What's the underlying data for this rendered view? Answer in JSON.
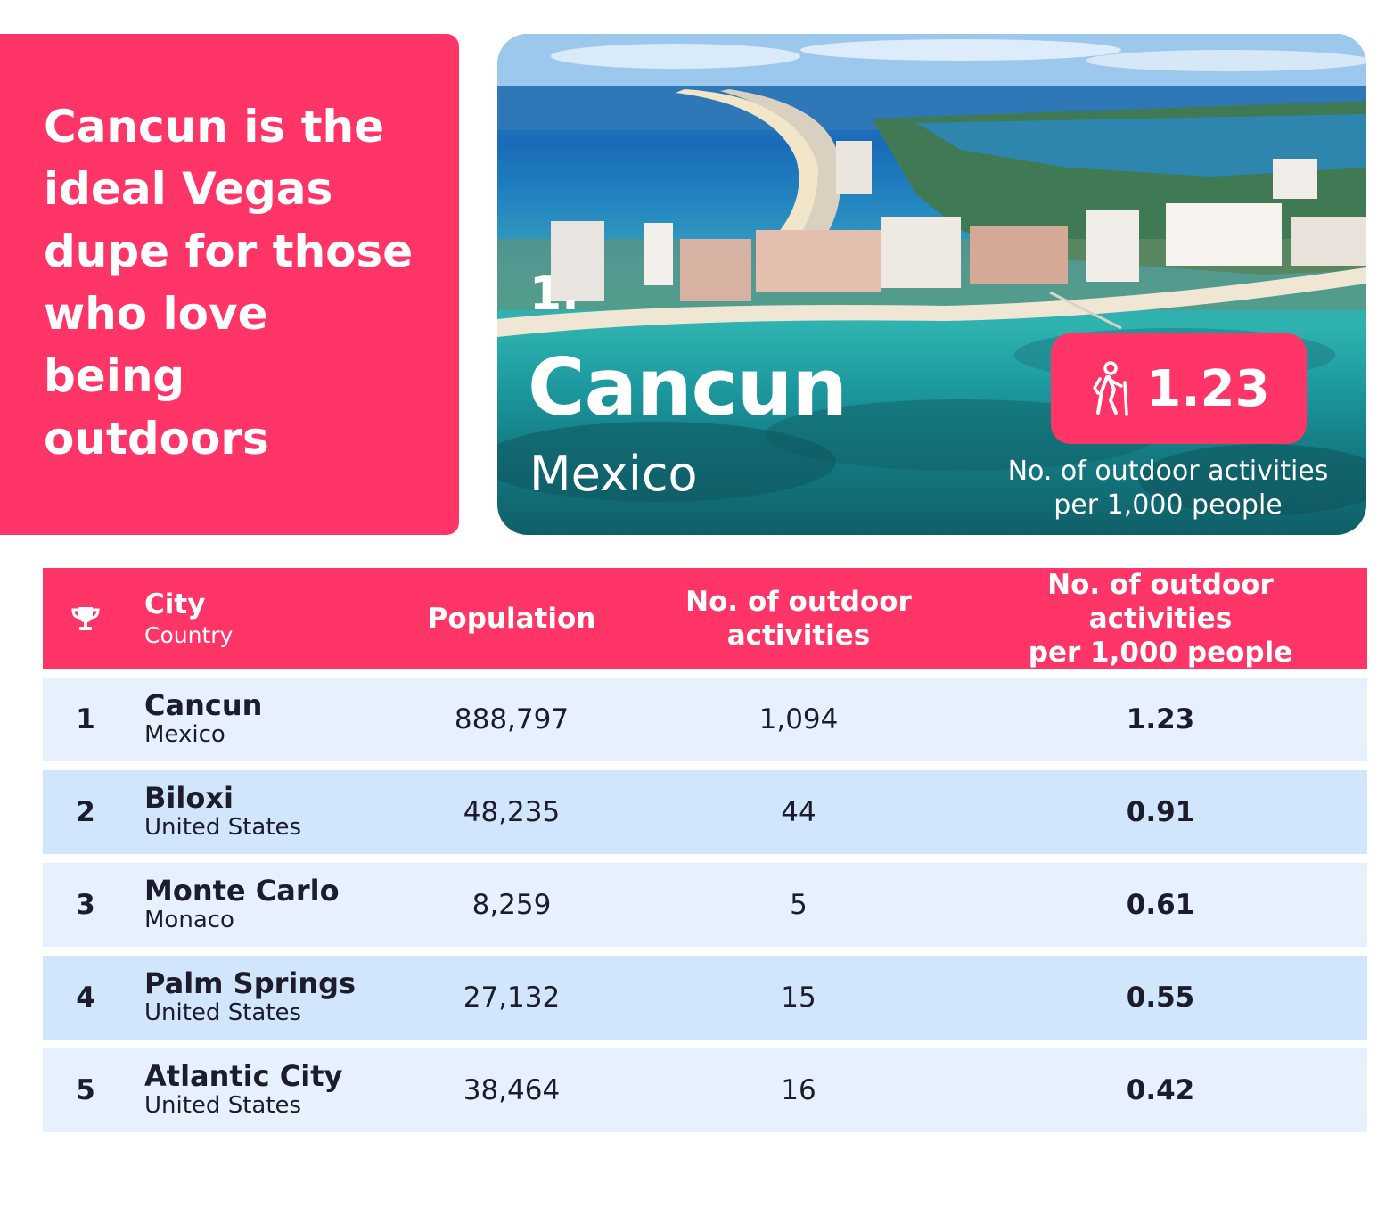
{
  "headline": "Cancun is the ideal Vegas dupe for those who love being outdoors",
  "feature": {
    "rank": "1.",
    "city": "Cancun",
    "country": "Mexico",
    "stat_icon": "hiker-icon",
    "stat_value": "1.23",
    "stat_caption_line1": "No. of outdoor activities",
    "stat_caption_line2": "per 1,000 people"
  },
  "table": {
    "header": {
      "rank_icon": "trophy-icon",
      "city": "City",
      "country": "Country",
      "population": "Population",
      "activities_line1": "No. of outdoor",
      "activities_line2": "activities",
      "per1000_line1": "No. of outdoor activities",
      "per1000_line2": "per 1,000 people"
    },
    "rows": [
      {
        "rank": "1",
        "city": "Cancun",
        "country": "Mexico",
        "population": "888,797",
        "activities": "1,094",
        "per_1000": "1.23"
      },
      {
        "rank": "2",
        "city": "Biloxi",
        "country": "United States",
        "population": "48,235",
        "activities": "44",
        "per_1000": "0.91"
      },
      {
        "rank": "3",
        "city": "Monte Carlo",
        "country": "Monaco",
        "population": "8,259",
        "activities": "5",
        "per_1000": "0.61"
      },
      {
        "rank": "4",
        "city": "Palm Springs",
        "country": "United States",
        "population": "27,132",
        "activities": "15",
        "per_1000": "0.55"
      },
      {
        "rank": "5",
        "city": "Atlantic City",
        "country": "United States",
        "population": "38,464",
        "activities": "16",
        "per_1000": "0.42"
      }
    ]
  },
  "colors": {
    "accent_pink": "#ff3567",
    "row_light": "#e6f1fd",
    "row_dark": "#d1e6fc"
  }
}
